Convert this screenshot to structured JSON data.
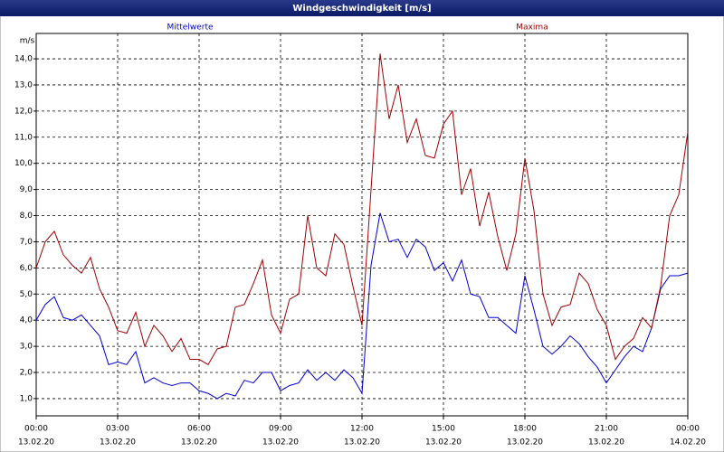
{
  "chart_data": {
    "type": "line",
    "title": "Windgeschwindigkeit [m/s]",
    "y_unit": "m/s",
    "x": [
      0,
      20,
      40,
      60,
      80,
      100,
      120,
      140,
      160,
      180,
      200,
      220,
      240,
      260,
      280,
      300,
      320,
      340,
      360,
      380,
      400,
      420,
      440,
      460,
      480,
      500,
      520,
      540,
      560,
      580,
      600,
      620,
      640,
      660,
      680,
      700,
      720,
      740,
      760,
      780,
      800,
      820,
      840,
      860,
      880,
      900,
      920,
      940,
      960,
      980,
      1000,
      1020,
      1040,
      1060,
      1080,
      1100,
      1120,
      1140,
      1160,
      1180,
      1200,
      1220,
      1240,
      1260,
      1280,
      1300,
      1320,
      1340,
      1360,
      1380,
      1400,
      1420,
      1440
    ],
    "series": [
      {
        "name": "Mittelwerte",
        "color": "#0000cc",
        "values": [
          4.0,
          4.6,
          4.9,
          4.1,
          4.0,
          4.2,
          3.8,
          3.4,
          2.3,
          2.4,
          2.3,
          2.8,
          1.6,
          1.8,
          1.6,
          1.5,
          1.6,
          1.6,
          1.3,
          1.2,
          1.0,
          1.2,
          1.1,
          1.7,
          1.6,
          2.0,
          2.0,
          1.3,
          1.5,
          1.6,
          2.1,
          1.7,
          2.0,
          1.7,
          2.1,
          1.8,
          1.2,
          6.1,
          8.1,
          7.0,
          7.1,
          6.4,
          7.1,
          6.8,
          5.9,
          6.2,
          5.5,
          6.3,
          5.0,
          4.9,
          4.1,
          4.1,
          3.8,
          3.5,
          5.7,
          4.4,
          3.0,
          2.7,
          3.0,
          3.4,
          3.1,
          2.6,
          2.2,
          1.6,
          2.1,
          2.6,
          3.0,
          2.8,
          3.7,
          5.2,
          5.7,
          5.7,
          5.8
        ]
      },
      {
        "name": "Maxima",
        "color": "#a00000",
        "values": [
          6.0,
          7.0,
          7.4,
          6.5,
          6.1,
          5.8,
          6.4,
          5.2,
          4.5,
          3.6,
          3.5,
          4.3,
          3.0,
          3.8,
          3.4,
          2.8,
          3.3,
          2.5,
          2.5,
          2.3,
          2.9,
          3.0,
          4.5,
          4.6,
          5.4,
          6.3,
          4.2,
          3.5,
          4.8,
          5.0,
          8.0,
          6.0,
          5.7,
          7.3,
          6.9,
          5.3,
          3.8,
          9.0,
          14.2,
          11.7,
          13.0,
          10.8,
          11.7,
          10.3,
          10.2,
          11.5,
          12.0,
          8.8,
          9.8,
          7.6,
          8.9,
          7.2,
          5.9,
          7.3,
          10.2,
          8.2,
          5.0,
          3.8,
          4.5,
          4.6,
          5.8,
          5.4,
          4.4,
          3.8,
          2.5,
          3.0,
          3.3,
          4.1,
          3.7,
          5.3,
          8.0,
          8.8,
          11.2
        ]
      }
    ],
    "xlim": [
      0,
      1440
    ],
    "xticks": [
      {
        "value": 0,
        "label": "00:00"
      },
      {
        "value": 180,
        "label": "03:00"
      },
      {
        "value": 360,
        "label": "06:00"
      },
      {
        "value": 540,
        "label": "09:00"
      },
      {
        "value": 720,
        "label": "12:00"
      },
      {
        "value": 900,
        "label": "15:00"
      },
      {
        "value": 1080,
        "label": "18:00"
      },
      {
        "value": 1260,
        "label": "21:00"
      },
      {
        "value": 1440,
        "label": "00:00"
      }
    ],
    "xtick_dates": [
      "13.02.20",
      "13.02.20",
      "13.02.20",
      "13.02.20",
      "13.02.20",
      "13.02.20",
      "13.02.20",
      "13.02.20",
      "14.02.20"
    ],
    "ylim": [
      0.34,
      14.97
    ],
    "yticks": [
      {
        "value": 1,
        "label": "1,0"
      },
      {
        "value": 2,
        "label": "2,0"
      },
      {
        "value": 3,
        "label": "3,0"
      },
      {
        "value": 4,
        "label": "4,0"
      },
      {
        "value": 5,
        "label": "5,0"
      },
      {
        "value": 6,
        "label": "6,0"
      },
      {
        "value": 7,
        "label": "7,0"
      },
      {
        "value": 8,
        "label": "8,0"
      },
      {
        "value": 9,
        "label": "9,0"
      },
      {
        "value": 10,
        "label": "10,0"
      },
      {
        "value": 11,
        "label": "11,0"
      },
      {
        "value": 12,
        "label": "12,0"
      },
      {
        "value": 13,
        "label": "13,0"
      },
      {
        "value": 14,
        "label": "14,0"
      }
    ],
    "grid": true
  }
}
